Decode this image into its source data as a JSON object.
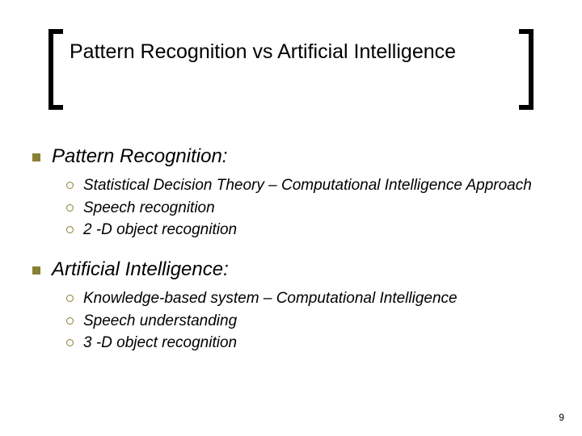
{
  "colors": {
    "accent": "#888033",
    "text": "#000000",
    "background": "#ffffff"
  },
  "typography": {
    "title_fontsize": 25,
    "l1_fontsize": 24,
    "l2_fontsize": 19,
    "italic_body": true
  },
  "layout": {
    "slide_width": 720,
    "slide_height": 540,
    "bracket_thickness": 6,
    "underline_thickness": 4
  },
  "title": "Pattern Recognition vs Artificial Intelligence",
  "sections": [
    {
      "heading": "Pattern Recognition:",
      "items": [
        "Statistical Decision Theory – Computational Intelligence Approach",
        "Speech recognition",
        "2 -D object recognition"
      ]
    },
    {
      "heading": "Artificial Intelligence:",
      "items": [
        "Knowledge-based system – Computational Intelligence",
        "Speech understanding",
        "3 -D object recognition"
      ]
    }
  ],
  "page_number": "9"
}
